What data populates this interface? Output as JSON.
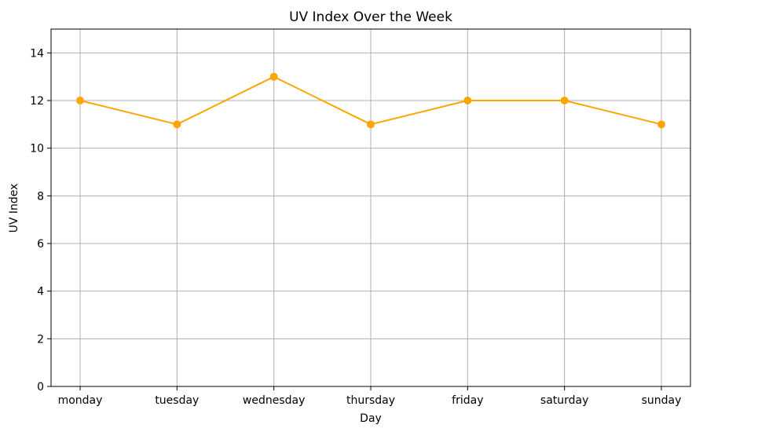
{
  "chart_data": {
    "type": "line",
    "title": "UV Index Over the Week",
    "xlabel": "Day",
    "ylabel": "UV Index",
    "categories": [
      "monday",
      "tuesday",
      "wednesday",
      "thursday",
      "friday",
      "saturday",
      "sunday"
    ],
    "series": [
      {
        "values": [
          12,
          11,
          13,
          11,
          12,
          12,
          11
        ]
      }
    ],
    "ylim": [
      0,
      15
    ],
    "yticks": [
      0,
      2,
      4,
      6,
      8,
      10,
      12,
      14
    ],
    "grid": true,
    "markers": true,
    "colors": {
      "line": "#FFA500",
      "grid": "#b0b0b0",
      "axes": "#000000"
    }
  }
}
